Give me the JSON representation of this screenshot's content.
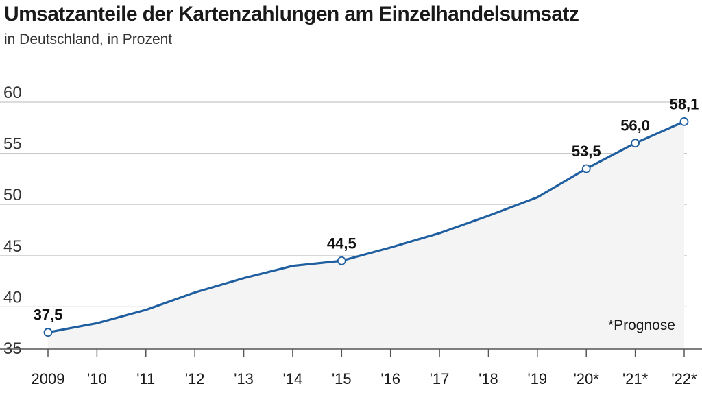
{
  "colors": {
    "line": "#1f5fa0",
    "area": "#f4f4f4",
    "grid": "#c8c8c8",
    "axis": "#555555"
  },
  "chart_data": {
    "type": "line",
    "title": "Umsatzanteile der Kartenzahlungen am Einzelhandelsumsatz",
    "subtitle": "in Deutschland, in Prozent",
    "xlabel": "",
    "ylabel": "",
    "categories": [
      "2009",
      "'10",
      "'11",
      "'12",
      "'13",
      "'14",
      "'15",
      "'16",
      "'17",
      "'18",
      "'19",
      "'20*",
      "'21*",
      "'22*"
    ],
    "series": [
      {
        "values": [
          37.5,
          38.4,
          39.7,
          41.4,
          42.8,
          44.0,
          44.5,
          45.8,
          47.2,
          48.9,
          50.7,
          53.5,
          56.0,
          58.1
        ],
        "marked": [
          true,
          false,
          false,
          false,
          false,
          false,
          true,
          false,
          false,
          false,
          false,
          true,
          true,
          true
        ]
      }
    ],
    "data_labels": [
      {
        "index": 0,
        "text": "37,5"
      },
      {
        "index": 6,
        "text": "44,5"
      },
      {
        "index": 11,
        "text": "53,5"
      },
      {
        "index": 12,
        "text": "56,0"
      },
      {
        "index": 13,
        "text": "58,1"
      }
    ],
    "yticks": [
      35,
      40,
      45,
      50,
      55,
      60
    ],
    "ytick_labels": [
      "35",
      "40",
      "45",
      "50",
      "55",
      "60"
    ],
    "ylim": [
      35,
      60
    ],
    "grid": true,
    "area_fill": true,
    "annotation": "*Prognose"
  }
}
